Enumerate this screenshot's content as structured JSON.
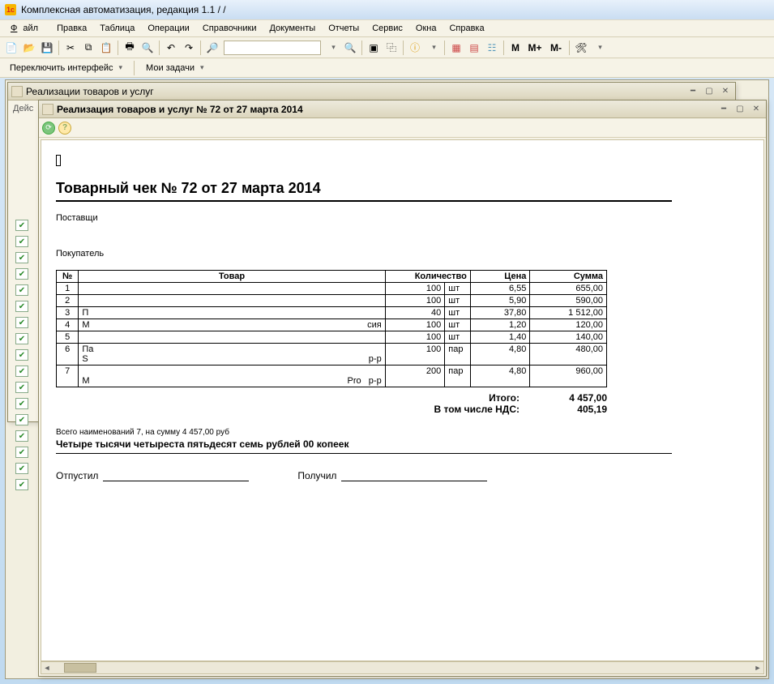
{
  "app": {
    "title": "Комплексная автоматизация, редакция 1.1 /                          /"
  },
  "menu": {
    "file": "Файл",
    "edit": "Правка",
    "table": "Таблица",
    "operations": "Операции",
    "refs": "Справочники",
    "docs": "Документы",
    "reports": "Отчеты",
    "service": "Сервис",
    "windows": "Окна",
    "help": "Справка"
  },
  "secondbar": {
    "switch_interface": "Переключить интерфейс",
    "my_tasks": "Мои задачи"
  },
  "toolbar_text": {
    "M": "M",
    "Mplus": "M+",
    "Mminus": "M-"
  },
  "back_window": {
    "title": "Реализации товаров и услуг",
    "truncated": "Дейс"
  },
  "front_window": {
    "title": "Реализация товаров и услуг № 72 от 27 марта 2014"
  },
  "doc": {
    "heading": "Товарный чек № 72 от 27 марта 2014",
    "supplier_label": "Поставщи",
    "buyer_label": "Покупатель",
    "summary_small": "Всего наименований 7, на сумму 4 457,00 руб",
    "summary_words": "Четыре тысячи четыреста пятьдесят семь рублей 00 копеек",
    "released_label": "Отпустил",
    "received_label": "Получил"
  },
  "table": {
    "headers": {
      "num": "№",
      "name": "Товар",
      "qty": "Количество",
      "price": "Цена",
      "sum": "Сумма"
    },
    "rows": [
      {
        "n": "1",
        "name": "",
        "qty": "100",
        "unit": "шт",
        "price": "6,55",
        "sum": "655,00"
      },
      {
        "n": "2",
        "name": "",
        "qty": "100",
        "unit": "шт",
        "price": "5,90",
        "sum": "590,00"
      },
      {
        "n": "3",
        "name": "П",
        "qty": "40",
        "unit": "шт",
        "price": "37,80",
        "sum": "1 512,00"
      },
      {
        "n": "4",
        "name": "М",
        "name_extra": "сия",
        "qty": "100",
        "unit": "шт",
        "price": "1,20",
        "sum": "120,00"
      },
      {
        "n": "5",
        "name": "",
        "qty": "100",
        "unit": "шт",
        "price": "1,40",
        "sum": "140,00"
      },
      {
        "n": "6",
        "name": "Па\nS",
        "name_extra": "р-р",
        "qty": "100",
        "unit": "пар",
        "price": "4,80",
        "sum": "480,00"
      },
      {
        "n": "7",
        "name": "\nМ",
        "name_extra": "Pro   р-р",
        "qty": "200",
        "unit": "пар",
        "price": "4,80",
        "sum": "960,00"
      }
    ],
    "totals": {
      "total_label": "Итого:",
      "total_value": "4 457,00",
      "vat_label": "В том числе НДС:",
      "vat_value": "405,19"
    }
  },
  "colors": {
    "titlebar_bg_top": "#e8f1fb",
    "titlebar_bg_bottom": "#c9ddf2",
    "panel_bg": "#f6f3e7",
    "border": "#d6cfb5",
    "workspace_bg": "#f2efe0",
    "text": "#000000"
  }
}
